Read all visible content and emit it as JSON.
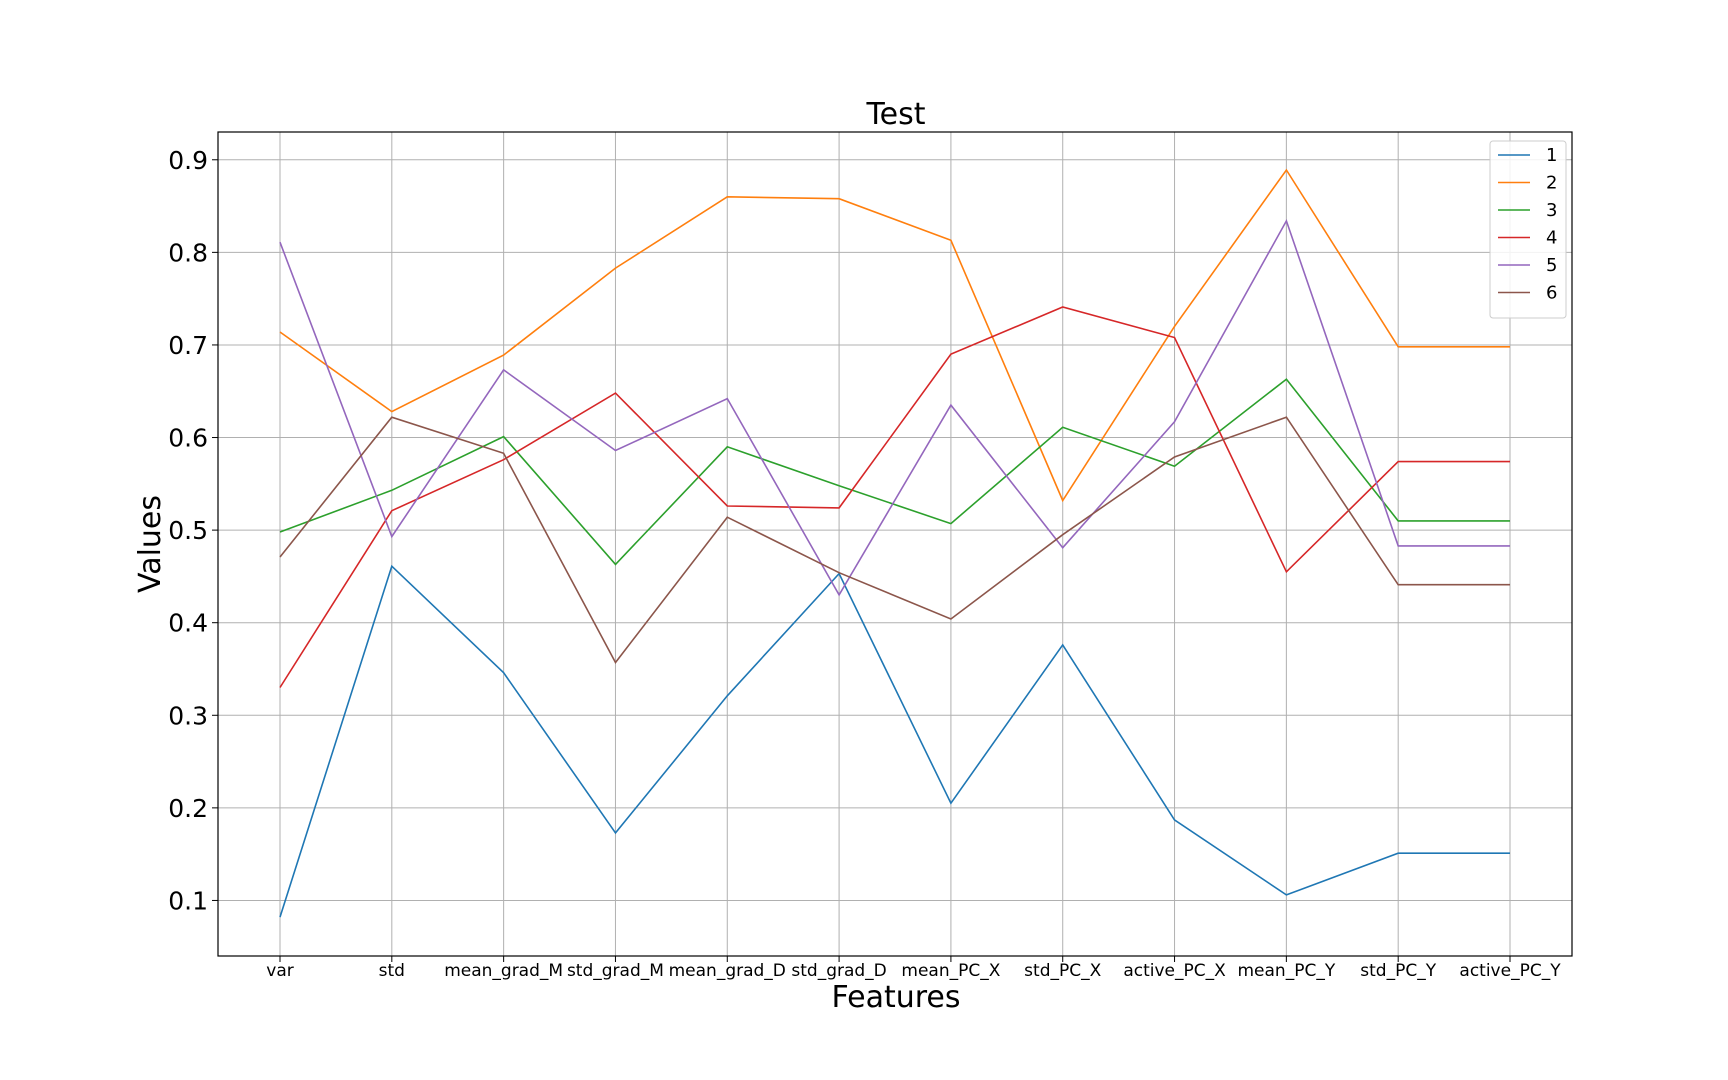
{
  "chart_data": {
    "type": "line",
    "title": "Test",
    "xlabel": "Features",
    "ylabel": "Values",
    "categories": [
      "var",
      "std",
      "mean_grad_M",
      "std_grad_M",
      "mean_grad_D",
      "std_grad_D",
      "mean_PC_X",
      "std_PC_X",
      "active_PC_X",
      "mean_PC_Y",
      "std_PC_Y",
      "active_PC_Y"
    ],
    "ylim": [
      0.04,
      0.93
    ],
    "yticks": [
      "0.1",
      "0.2",
      "0.3",
      "0.4",
      "0.5",
      "0.6",
      "0.7",
      "0.8",
      "0.9"
    ],
    "grid": true,
    "legend_position": "top-right",
    "series": [
      {
        "name": "1",
        "color": "#1f77b4",
        "values": [
          0.082,
          0.461,
          0.346,
          0.173,
          0.321,
          0.453,
          0.205,
          0.376,
          0.187,
          0.106,
          0.151,
          0.151
        ]
      },
      {
        "name": "2",
        "color": "#ff7f0e",
        "values": [
          0.714,
          0.628,
          0.689,
          0.783,
          0.86,
          0.858,
          0.813,
          0.532,
          0.72,
          0.889,
          0.698,
          0.698
        ]
      },
      {
        "name": "3",
        "color": "#2ca02c",
        "values": [
          0.498,
          0.543,
          0.601,
          0.463,
          0.59,
          0.548,
          0.507,
          0.611,
          0.569,
          0.663,
          0.51,
          0.51
        ]
      },
      {
        "name": "4",
        "color": "#d62728",
        "values": [
          0.33,
          0.521,
          0.576,
          0.648,
          0.526,
          0.524,
          0.69,
          0.741,
          0.708,
          0.455,
          0.574,
          0.574
        ]
      },
      {
        "name": "5",
        "color": "#9467bd",
        "values": [
          0.811,
          0.493,
          0.673,
          0.586,
          0.642,
          0.43,
          0.635,
          0.481,
          0.617,
          0.834,
          0.483,
          0.483
        ]
      },
      {
        "name": "6",
        "color": "#8c564b",
        "values": [
          0.471,
          0.622,
          0.583,
          0.357,
          0.514,
          0.454,
          0.404,
          0.495,
          0.579,
          0.622,
          0.441,
          0.441
        ]
      }
    ]
  }
}
